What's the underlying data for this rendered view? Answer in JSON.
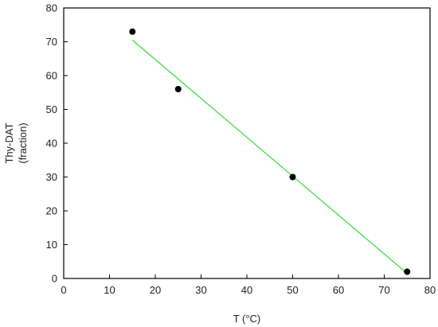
{
  "chart_data": {
    "type": "scatter",
    "xlabel": "T (°C)",
    "ylabel": [
      "Thy-DAT",
      "(fraction)"
    ],
    "xlim": [
      0,
      80
    ],
    "ylim": [
      0,
      80
    ],
    "x_ticks": [
      0,
      10,
      20,
      30,
      40,
      50,
      60,
      70,
      80
    ],
    "y_ticks": [
      0,
      10,
      20,
      30,
      40,
      50,
      60,
      70,
      80
    ],
    "grid": false,
    "points": [
      {
        "x": 15,
        "y": 73
      },
      {
        "x": 25,
        "y": 56
      },
      {
        "x": 50,
        "y": 30
      },
      {
        "x": 75,
        "y": 2
      }
    ],
    "fit_line": {
      "x": [
        15,
        75
      ],
      "y": [
        70.5,
        1.5
      ]
    },
    "colors": {
      "points": "#000000",
      "fit_line": "#33dd33",
      "axes": "#000000"
    }
  }
}
